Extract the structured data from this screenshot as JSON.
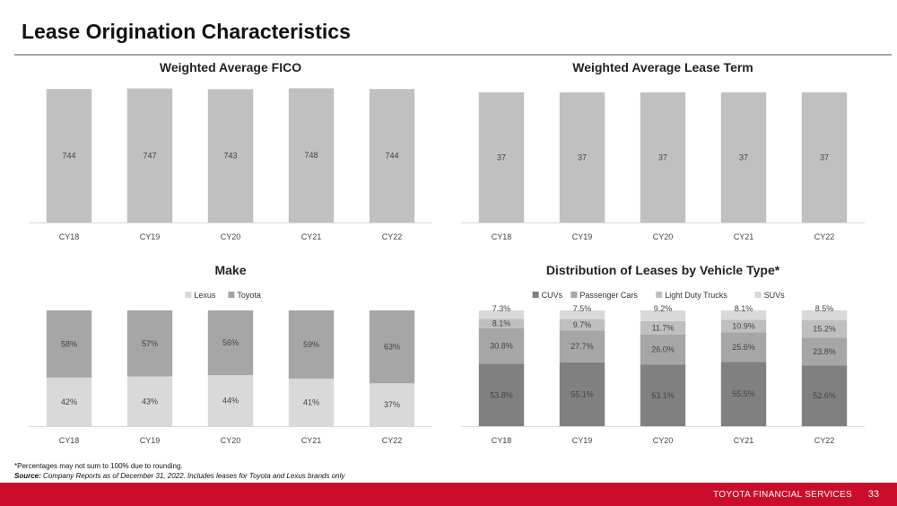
{
  "page": {
    "title": "Lease Origination Characteristics",
    "footnote": "*Percentages may not sum to 100% due to rounding.",
    "source_label": "Source:",
    "source_text": "Company Reports as of December 31, 2022. Includes leases for Toyota and Lexus brands only",
    "footer_brand": "TOYOTA FINANCIAL SERVICES",
    "page_number": "33"
  },
  "chart_data": [
    {
      "id": "fico",
      "type": "bar",
      "title": "Weighted Average FICO",
      "categories": [
        "CY18",
        "CY19",
        "CY20",
        "CY21",
        "CY22"
      ],
      "values": [
        744,
        747,
        743,
        748,
        744
      ],
      "labels": [
        "744",
        "747",
        "743",
        "748",
        "744"
      ],
      "ylim": [
        0,
        755
      ],
      "color": "#c0c0c0",
      "grid": false
    },
    {
      "id": "term",
      "type": "bar",
      "title": "Weighted Average Lease Term",
      "categories": [
        "CY18",
        "CY19",
        "CY20",
        "CY21",
        "CY22"
      ],
      "values": [
        37,
        37,
        37,
        37,
        37
      ],
      "labels": [
        "37",
        "37",
        "37",
        "37",
        "37"
      ],
      "ylim": [
        0,
        38.5
      ],
      "color": "#c0c0c0",
      "grid": false
    },
    {
      "id": "make",
      "type": "bar",
      "stacked": true,
      "title": "Make",
      "categories": [
        "CY18",
        "CY19",
        "CY20",
        "CY21",
        "CY22"
      ],
      "legend_position": "top",
      "series": [
        {
          "name": "Lexus",
          "color": "#d9d9d9",
          "values": [
            42,
            43,
            44,
            41,
            37
          ],
          "labels": [
            "42%",
            "43%",
            "44%",
            "41%",
            "37%"
          ]
        },
        {
          "name": "Toyota",
          "color": "#a6a6a6",
          "values": [
            58,
            57,
            56,
            59,
            63
          ],
          "labels": [
            "58%",
            "57%",
            "56%",
            "59%",
            "63%"
          ]
        }
      ],
      "ylim": [
        0,
        100
      ]
    },
    {
      "id": "vehicle",
      "type": "bar",
      "stacked": true,
      "title": "Distribution of Leases by Vehicle Type*",
      "categories": [
        "CY18",
        "CY19",
        "CY20",
        "CY21",
        "CY22"
      ],
      "legend_position": "top",
      "series": [
        {
          "name": "CUVs",
          "color": "#808080",
          "values": [
            53.8,
            55.1,
            53.1,
            55.5,
            52.6
          ],
          "labels": [
            "53.8%",
            "55.1%",
            "53.1%",
            "55.5%",
            "52.6%"
          ]
        },
        {
          "name": "Passenger Cars",
          "color": "#a6a6a6",
          "values": [
            30.8,
            27.7,
            26.0,
            25.6,
            23.8
          ],
          "labels": [
            "30.8%",
            "27.7%",
            "26.0%",
            "25.6%",
            "23.8%"
          ]
        },
        {
          "name": "Light Duty Trucks",
          "color": "#bfbfbf",
          "values": [
            8.1,
            9.7,
            11.7,
            10.9,
            15.2
          ],
          "labels": [
            "8.1%",
            "9.7%",
            "11.7%",
            "10.9%",
            "15.2%"
          ]
        },
        {
          "name": "SUVs",
          "color": "#d9d9d9",
          "values": [
            7.3,
            7.5,
            9.2,
            8.1,
            8.5
          ],
          "labels": [
            "7.3%",
            "7.5%",
            "9.2%",
            "8.1%",
            "8.5%"
          ]
        }
      ],
      "ylim": [
        0,
        100
      ]
    }
  ]
}
